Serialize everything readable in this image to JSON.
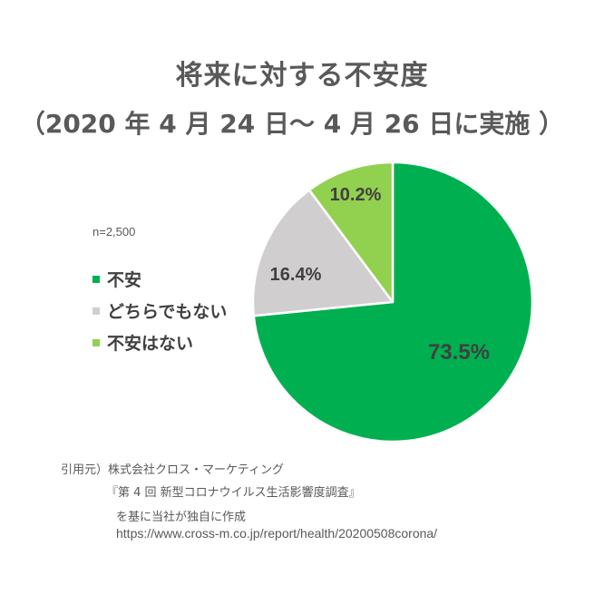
{
  "header": {
    "title": "将来に対する不安度",
    "subtitle": "（2020 年 4 月 24 日～ 4 月 26 日に実施 ）"
  },
  "sample_size": "n=2,500",
  "legend": [
    {
      "label": "不安",
      "color": "#00B050"
    },
    {
      "label": "どちらでもない",
      "color": "#D0CECE"
    },
    {
      "label": "不安はない",
      "color": "#92D050"
    }
  ],
  "slices": [
    {
      "label": "不安",
      "value_label": "73.5%",
      "color": "#00B050"
    },
    {
      "label": "どちらでもない",
      "value_label": "16.4%",
      "color": "#D0CECE"
    },
    {
      "label": "不安はない",
      "value_label": "10.2%",
      "color": "#92D050"
    }
  ],
  "source": {
    "line1": "引用元）株式会社クロス・マーケティング",
    "line2": "『第 4 回 新型コロナウイルス生活影響度調査』",
    "line3": "を基に当社が独自に作成",
    "line4": "https://www.cross-m.co.jp/report/health/20200508corona/"
  },
  "chart_data": {
    "type": "pie",
    "title": "将来に対する不安度",
    "subtitle": "（2020 年 4 月 24 日～ 4 月 26 日に実施 ）",
    "categories": [
      "不安",
      "どちらでもない",
      "不安はない"
    ],
    "values": [
      73.5,
      16.4,
      10.2
    ],
    "value_labels": [
      "73.5%",
      "16.4%",
      "10.2%"
    ],
    "colors": [
      "#00B050",
      "#D0CECE",
      "#92D050"
    ],
    "start_angle": "12 o'clock, clockwise",
    "annotations": [
      "n=2,500"
    ],
    "legend_position": "left"
  }
}
